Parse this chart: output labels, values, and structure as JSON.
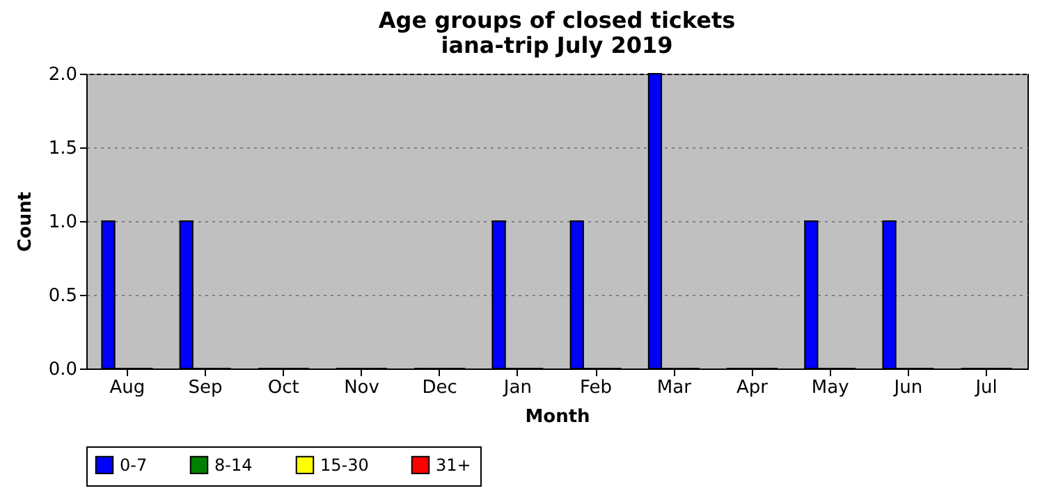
{
  "chart_data": {
    "type": "bar",
    "title": "Age groups of closed tickets",
    "subtitle": "iana-trip July 2019",
    "xlabel": "Month",
    "ylabel": "Count",
    "categories": [
      "Aug",
      "Sep",
      "Oct",
      "Nov",
      "Dec",
      "Jan",
      "Feb",
      "Mar",
      "Apr",
      "May",
      "Jun",
      "Jul"
    ],
    "series": [
      {
        "name": "0-7",
        "color": "#0000ff",
        "values": [
          1,
          1,
          0,
          0,
          0,
          1,
          1,
          2,
          0,
          1,
          1,
          0
        ]
      },
      {
        "name": "8-14",
        "color": "#008000",
        "values": [
          0,
          0,
          0,
          0,
          0,
          0,
          0,
          0,
          0,
          0,
          0,
          0
        ]
      },
      {
        "name": "15-30",
        "color": "#ffff00",
        "values": [
          0,
          0,
          0,
          0,
          0,
          0,
          0,
          0,
          0,
          0,
          0,
          0
        ]
      },
      {
        "name": "31+",
        "color": "#ff0000",
        "values": [
          0,
          0,
          0,
          0,
          0,
          0,
          0,
          0,
          0,
          0,
          0,
          0
        ]
      }
    ],
    "ylim": [
      0,
      2
    ],
    "yticks": [
      {
        "value": 0,
        "label": "0.0"
      },
      {
        "value": 0.5,
        "label": "0.5"
      },
      {
        "value": 1,
        "label": "1.0"
      },
      {
        "value": 1.5,
        "label": "1.5"
      },
      {
        "value": 2,
        "label": "2.0"
      }
    ],
    "grid": "y",
    "legend": "bottom"
  }
}
